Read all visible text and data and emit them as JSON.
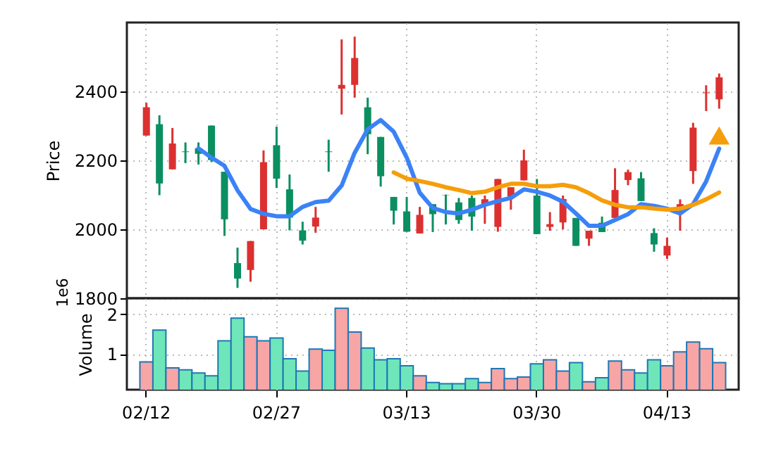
{
  "chart_data": [
    {
      "type": "candlestick",
      "ylabel": "Price",
      "categories": [
        null,
        null,
        null,
        null,
        null,
        null,
        null,
        null,
        null,
        null,
        null,
        null,
        null,
        null,
        null,
        null,
        null,
        null,
        null,
        null,
        null,
        null,
        null,
        null,
        null,
        null,
        null,
        null,
        null,
        null,
        null,
        null,
        null,
        null,
        null,
        null,
        null,
        null,
        null,
        null,
        null,
        null,
        null,
        null,
        null
      ],
      "ohlc": [
        [
          2272,
          2367,
          2272,
          2354
        ],
        [
          2305,
          2331,
          2099,
          2133
        ],
        [
          2174,
          2294,
          2174,
          2249
        ],
        [
          2226,
          2252,
          2192,
          2224
        ],
        [
          2235,
          2252,
          2188,
          2219
        ],
        [
          2301,
          2301,
          2195,
          2201
        ],
        [
          2167,
          2167,
          1981,
          2029
        ],
        [
          1902,
          1947,
          1830,
          1857
        ],
        [
          1882,
          1966,
          1848,
          1966
        ],
        [
          2000,
          2229,
          2000,
          2195
        ],
        [
          2244,
          2298,
          2120,
          2147
        ],
        [
          2116,
          2159,
          1997,
          2034
        ],
        [
          1997,
          2022,
          1956,
          1967
        ],
        [
          2008,
          2065,
          1990,
          2034
        ],
        [
          2226,
          2260,
          2167,
          2224
        ],
        [
          2408,
          2551,
          2333,
          2419
        ],
        [
          2419,
          2559,
          2382,
          2497
        ],
        [
          2354,
          2382,
          2218,
          2276
        ],
        [
          2268,
          2268,
          2124,
          2154
        ],
        [
          2094,
          2094,
          2014,
          2054
        ],
        [
          2052,
          2094,
          1993,
          1993
        ],
        [
          1988,
          2065,
          1988,
          2042
        ],
        [
          2073,
          2073,
          1992,
          2044
        ],
        [
          2099,
          2101,
          2014,
          2098
        ],
        [
          2078,
          2091,
          2016,
          2027
        ],
        [
          2091,
          2098,
          1996,
          2037
        ],
        [
          2073,
          2098,
          2016,
          2087
        ],
        [
          2007,
          2146,
          1993,
          2146
        ],
        [
          2095,
          2122,
          2057,
          2122
        ],
        [
          2142,
          2231,
          2142,
          2200
        ],
        [
          2098,
          2146,
          1986,
          1986
        ],
        [
          2007,
          2050,
          1996,
          2015
        ],
        [
          2020,
          2098,
          2000,
          2088
        ],
        [
          2033,
          2033,
          1952,
          1952
        ],
        [
          1973,
          1996,
          1952,
          1996
        ],
        [
          2019,
          2037,
          1992,
          1992
        ],
        [
          2033,
          2177,
          2033,
          2114
        ],
        [
          2143,
          2173,
          2128,
          2166
        ],
        [
          2148,
          2166,
          2082,
          2082
        ],
        [
          1989,
          2003,
          1935,
          1956
        ],
        [
          1924,
          1976,
          1914,
          1952
        ],
        [
          2057,
          2087,
          1996,
          2073
        ],
        [
          2169,
          2309,
          2132,
          2295
        ],
        [
          2395,
          2418,
          2343,
          2397
        ],
        [
          2377,
          2452,
          2350,
          2441
        ]
      ],
      "colors": [
        "#dc3030",
        "#0b8f60",
        "#dc3030",
        "#0b8f60",
        "#0b8f60",
        "#0b8f60",
        "#0b8f60",
        "#0b8f60",
        "#dc3030",
        "#dc3030",
        "#0b8f60",
        "#0b8f60",
        "#0b8f60",
        "#dc3030",
        "#0b8f60",
        "#dc3030",
        "#dc3030",
        "#0b8f60",
        "#0b8f60",
        "#0b8f60",
        "#0b8f60",
        "#dc3030",
        "#0b8f60",
        "#0b8f60",
        "#0b8f60",
        "#0b8f60",
        "#dc3030",
        "#dc3030",
        "#dc3030",
        "#dc3030",
        "#0b8f60",
        "#dc3030",
        "#dc3030",
        "#0b8f60",
        "#dc3030",
        "#0b8f60",
        "#dc3030",
        "#dc3030",
        "#0b8f60",
        "#0b8f60",
        "#dc3030",
        "#dc3030",
        "#dc3030",
        "#dc3030",
        "#dc3030"
      ],
      "ylim": [
        1800,
        2600
      ],
      "yticks": [
        1800,
        2000,
        2200,
        2400
      ],
      "grid": true,
      "tick_labels": "y",
      "series": [
        {
          "type": "line",
          "color": "#3b82f6",
          "values": [
            null,
            null,
            null,
            null,
            2235,
            2208,
            2184,
            2113,
            2059,
            2045,
            2038,
            2038,
            2065,
            2079,
            2083,
            2127,
            2222,
            2290,
            2317,
            2283,
            2208,
            2106,
            2062,
            2050,
            2046,
            2057,
            2071,
            2082,
            2091,
            2116,
            2109,
            2098,
            2080,
            2046,
            2010,
            2010,
            2027,
            2044,
            2073,
            2068,
            2060,
            2046,
            2073,
            2139,
            2234
          ]
        },
        {
          "type": "line",
          "color": "#f59e0b",
          "values": [
            null,
            null,
            null,
            null,
            null,
            null,
            null,
            null,
            null,
            null,
            null,
            null,
            null,
            null,
            null,
            null,
            null,
            null,
            null,
            2165,
            2147,
            2140,
            2132,
            2122,
            2114,
            2105,
            2109,
            2122,
            2132,
            2132,
            2125,
            2125,
            2129,
            2122,
            2105,
            2084,
            2071,
            2064,
            2064,
            2060,
            2057,
            2060,
            2071,
            2087,
            2107
          ]
        },
        {
          "type": "scatter",
          "marker": "triangle",
          "color": "#f59e0b",
          "values": [
            null,
            null,
            null,
            null,
            null,
            null,
            null,
            null,
            null,
            null,
            null,
            null,
            null,
            null,
            null,
            null,
            null,
            null,
            null,
            null,
            null,
            null,
            null,
            null,
            null,
            null,
            null,
            null,
            null,
            null,
            null,
            null,
            null,
            null,
            null,
            null,
            null,
            null,
            null,
            null,
            null,
            null,
            null,
            null,
            2272
          ]
        }
      ]
    },
    {
      "type": "bar",
      "ylabel": "Volume",
      "annotations": [
        "1e6"
      ],
      "categories": [
        "02/12",
        null,
        null,
        null,
        null,
        null,
        null,
        null,
        null,
        null,
        "02/27",
        null,
        null,
        null,
        null,
        null,
        null,
        null,
        null,
        null,
        "03/13",
        null,
        null,
        null,
        null,
        null,
        null,
        null,
        null,
        null,
        "03/30",
        null,
        null,
        null,
        null,
        null,
        null,
        null,
        null,
        null,
        "04/13",
        null,
        null,
        null,
        null
      ],
      "values": [
        0.8,
        1.6,
        0.65,
        0.6,
        0.52,
        0.45,
        1.33,
        1.9,
        1.43,
        1.33,
        1.4,
        0.88,
        0.57,
        1.12,
        1.09,
        2.15,
        1.55,
        1.15,
        0.85,
        0.88,
        0.7,
        0.45,
        0.28,
        0.25,
        0.25,
        0.38,
        0.28,
        0.63,
        0.38,
        0.42,
        0.75,
        0.85,
        0.57,
        0.78,
        0.3,
        0.4,
        0.82,
        0.6,
        0.52,
        0.85,
        0.7,
        1.05,
        1.3,
        1.13,
        0.78
      ],
      "colors": [
        "#f7a5a5",
        "#6ee6b9",
        "#f7a5a5",
        "#6ee6b9",
        "#6ee6b9",
        "#6ee6b9",
        "#6ee6b9",
        "#6ee6b9",
        "#f7a5a5",
        "#f7a5a5",
        "#6ee6b9",
        "#6ee6b9",
        "#6ee6b9",
        "#f7a5a5",
        "#6ee6b9",
        "#f7a5a5",
        "#f7a5a5",
        "#6ee6b9",
        "#6ee6b9",
        "#6ee6b9",
        "#6ee6b9",
        "#f7a5a5",
        "#6ee6b9",
        "#6ee6b9",
        "#6ee6b9",
        "#6ee6b9",
        "#f7a5a5",
        "#f7a5a5",
        "#f7a5a5",
        "#f7a5a5",
        "#6ee6b9",
        "#f7a5a5",
        "#f7a5a5",
        "#6ee6b9",
        "#f7a5a5",
        "#6ee6b9",
        "#f7a5a5",
        "#f7a5a5",
        "#6ee6b9",
        "#6ee6b9",
        "#f7a5a5",
        "#f7a5a5",
        "#f7a5a5",
        "#f7a5a5",
        "#f7a5a5"
      ],
      "ylim": [
        0.1,
        2.4
      ],
      "yticks": [
        1,
        2
      ],
      "grid": true
    }
  ]
}
